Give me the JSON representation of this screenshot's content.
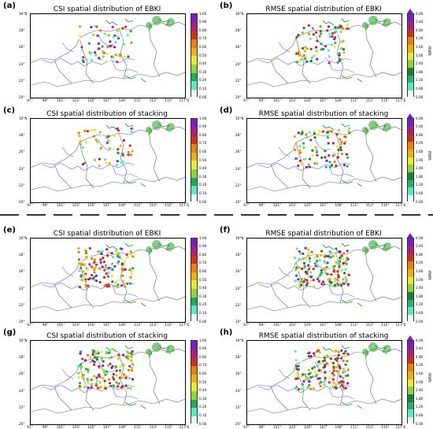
{
  "panels": [
    {
      "letter": "(a)",
      "title": "CSI spatial distribution of EBKI",
      "kind": "csi",
      "seed": 11,
      "n": 70
    },
    {
      "letter": "(b)",
      "title": "RMSE spatial distribution of EBKI",
      "kind": "rmse",
      "seed": 12,
      "n": 95
    },
    {
      "letter": "(c)",
      "title": "CSI spatial distribution of stacking",
      "kind": "csi",
      "seed": 13,
      "n": 60
    },
    {
      "letter": "(d)",
      "title": "RMSE spatial distribution of stacking",
      "kind": "rmse",
      "seed": 14,
      "n": 95
    },
    {
      "letter": "(e)",
      "title": "CSI spatial distribution of EBKI",
      "kind": "csi",
      "seed": 15,
      "n": 160
    },
    {
      "letter": "(f)",
      "title": "RMSE spatial distribution of EBKI",
      "kind": "rmse",
      "seed": 16,
      "n": 180
    },
    {
      "letter": "(g)",
      "title": "CSI spatial distribution of stacking",
      "kind": "csi",
      "seed": 17,
      "n": 170
    },
    {
      "letter": "(h)",
      "title": "RMSE spatial distribution of stacking",
      "kind": "rmse",
      "seed": 18,
      "n": 170
    }
  ],
  "lat_labels": [
    "30°N",
    "28°",
    "26°",
    "24°",
    "22°",
    "20°"
  ],
  "lon_labels": [
    "97°",
    "99°",
    "101°",
    "103°",
    "105°",
    "107°",
    "109°",
    "111°",
    "113°",
    "115°",
    "117°E"
  ],
  "csi_colorbar": {
    "ticks": [
      "0.00",
      "0.10",
      "0.20",
      "0.30",
      "0.40",
      "0.50",
      "0.60",
      "0.70",
      "0.80",
      "0.90",
      "1.00"
    ],
    "colors": [
      "#ecfbf3",
      "#5ce6c6",
      "#1fa85a",
      "#8fd23a",
      "#e9ea2c",
      "#eab10e",
      "#ea7e0e",
      "#d0301a",
      "#b0207a",
      "#7a1ec0"
    ]
  },
  "rmse_colorbar": {
    "unit": "mm",
    "ticks": [
      "0.00",
      "0.60",
      "1.20",
      "1.80",
      "2.40",
      "3.00",
      "3.60",
      "4.20",
      "4.80",
      "5.40",
      "6.00"
    ],
    "colors": [
      "#f0fbf6",
      "#5ce6c6",
      "#27b070",
      "#1f7f3a",
      "#8fd23a",
      "#e9ea2c",
      "#eab10e",
      "#ea7e0e",
      "#d0301a",
      "#b0207a",
      "#7a1ec0"
    ]
  }
}
